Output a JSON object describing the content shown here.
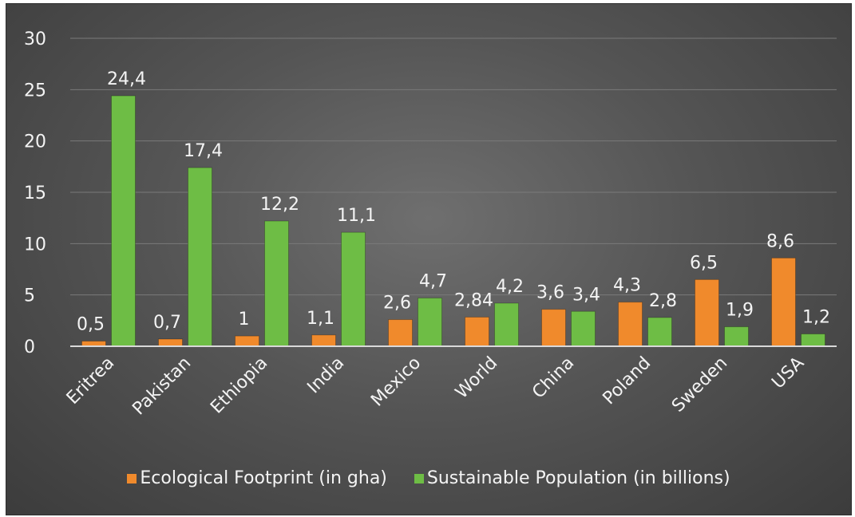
{
  "chart_data": {
    "type": "bar",
    "categories": [
      "Eritrea",
      "Pakistan",
      "Ethiopia",
      "India",
      "Mexico",
      "World",
      "China",
      "Poland",
      "Sweden",
      "USA"
    ],
    "series": [
      {
        "name": "Ecological Footprint (in gha)",
        "values": [
          0.5,
          0.7,
          1,
          1.1,
          2.6,
          2.84,
          3.6,
          4.3,
          6.5,
          8.6
        ],
        "labels": [
          "0,5",
          "0,7",
          "1",
          "1,1",
          "2,6",
          "2,84",
          "3,6",
          "4,3",
          "6,5",
          "8,6"
        ],
        "color": "#f08a2c"
      },
      {
        "name": "Sustainable Population (in billions)",
        "values": [
          24.4,
          17.4,
          12.2,
          11.1,
          4.7,
          4.2,
          3.4,
          2.8,
          1.9,
          1.2
        ],
        "labels": [
          "24,4",
          "17,4",
          "12,2",
          "11,1",
          "4,7",
          "4,2",
          "3,4",
          "2,8",
          "1,9",
          "1,2"
        ],
        "color": "#6ebd45"
      }
    ],
    "yticks": [
      "0",
      "5",
      "10",
      "15",
      "20",
      "25",
      "30"
    ],
    "ylim": [
      0,
      30
    ],
    "grid": true,
    "legend_position": "bottom",
    "background": "#555555"
  }
}
